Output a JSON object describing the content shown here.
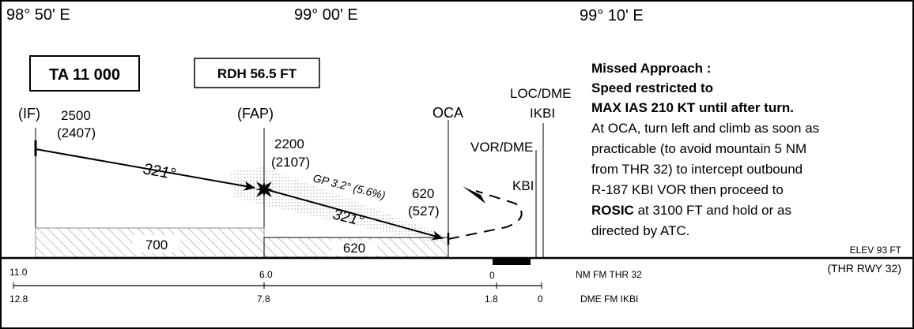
{
  "longitudes": [
    "98° 50' E",
    "99° 00' E",
    "99° 10' E"
  ],
  "boxes": {
    "ta": "TA 11 000",
    "rdh": "RDH 56.5 FT"
  },
  "fixes": {
    "if": {
      "label": "(IF)",
      "alt": "2500",
      "alt_ref": "(2407)"
    },
    "fap": {
      "label": "(FAP)",
      "alt": "2200",
      "alt_ref": "(2107)"
    },
    "oca": "OCA",
    "oca_alt": "620",
    "oca_alt_ref": "(527)",
    "loc": {
      "label": "LOC/DME",
      "ident": "IKBI"
    },
    "vor": {
      "label": "VOR/DME",
      "ident": "KBI"
    }
  },
  "tracks": {
    "initial": "321°",
    "final": "321°"
  },
  "glidepath": "GP 3.2° (5.6%)",
  "min_alt": {
    "initial": "700",
    "final": "620"
  },
  "missed_approach": {
    "title": "Missed Approach :",
    "line2": "Speed restricted to",
    "line3": "MAX IAS 210 KT until after turn.",
    "body": [
      "At OCA, turn left and climb as soon as",
      "practicable (to avoid mountain 5 NM",
      "from THR 32) to intercept outbound",
      "R-187 KBI VOR then proceed to"
    ],
    "rosic_bold": "ROSIC",
    "rosic_rest": " at 3100 FT and hold or as",
    "last": "directed by ATC."
  },
  "elevation": {
    "elev": "ELEV 93 FT",
    "ref": "(THR RWY 32)"
  },
  "nm_scale": {
    "label": "NM FM THR 32",
    "ticks": [
      "11.0",
      "6.0",
      "0"
    ]
  },
  "dme_scale": {
    "label": "DME FM IKBI",
    "ticks": [
      "12.8",
      "7.8",
      "1.8",
      "0"
    ]
  }
}
